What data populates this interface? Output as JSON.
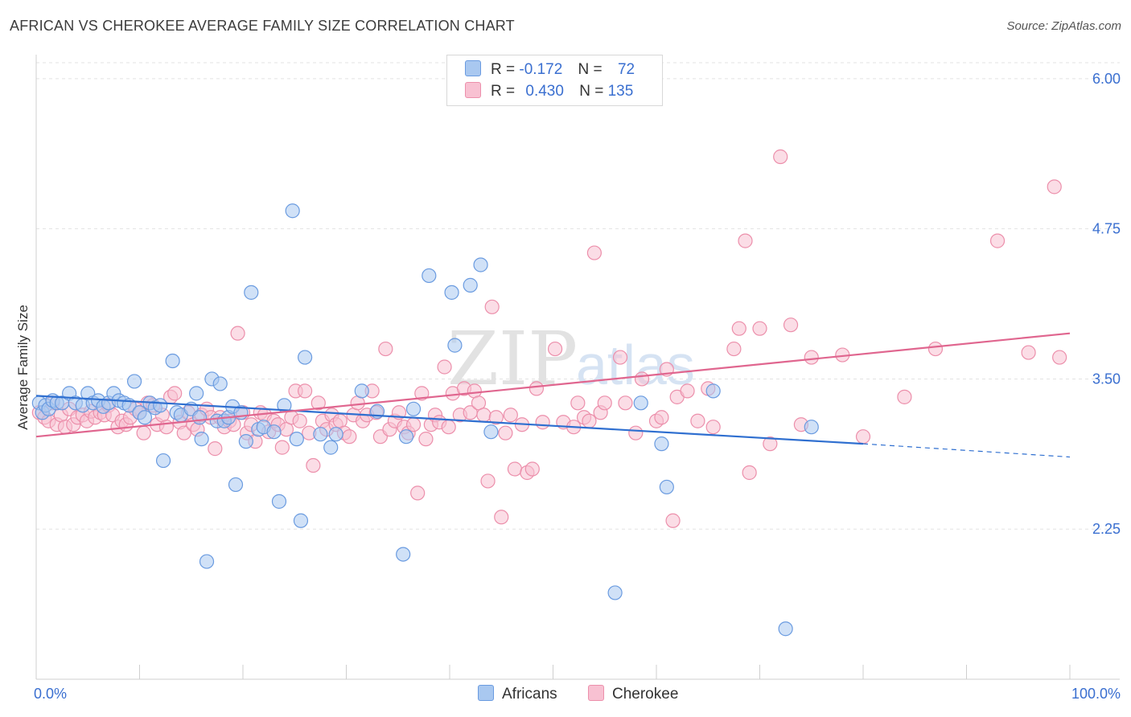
{
  "title": "AFRICAN VS CHEROKEE AVERAGE FAMILY SIZE CORRELATION CHART",
  "source": "Source: ZipAtlas.com",
  "watermark": {
    "zip": "ZIP",
    "atlas": "atlas"
  },
  "legend": {
    "r_label": "R =",
    "n_label": "N =",
    "rows": [
      {
        "r": "-0.172",
        "n": "72",
        "color": "#a9c8f0",
        "border": "#6a9be0"
      },
      {
        "r": "0.430",
        "n": "135",
        "color": "#f8c1d2",
        "border": "#ec8fab"
      }
    ]
  },
  "bottom_legend": [
    {
      "name": "Africans",
      "color": "#a9c8f0",
      "border": "#6a9be0"
    },
    {
      "name": "Cherokee",
      "color": "#f8c1d2",
      "border": "#ec8fab"
    }
  ],
  "chart_data": {
    "type": "scatter",
    "ylabel": "Average Family Size",
    "xlabel": "",
    "xlim": [
      0,
      100
    ],
    "ylim": [
      1.0,
      6.2
    ],
    "x_tick_labels": [
      "0.0%",
      "100.0%"
    ],
    "y_ticks": [
      2.25,
      3.5,
      4.75,
      6.0
    ],
    "y_tick_labels": [
      "2.25",
      "3.50",
      "4.75",
      "6.00"
    ],
    "grid": true,
    "series": [
      {
        "name": "Africans",
        "color": "#6a9be0",
        "fill": "#a9c8f0",
        "trend": {
          "x0": 0,
          "y0": 3.36,
          "x1": 80,
          "y1": 2.96,
          "dash_to": 100,
          "dash_y": 2.85
        },
        "points": [
          [
            0.3,
            3.3
          ],
          [
            0.6,
            3.22
          ],
          [
            0.9,
            3.28
          ],
          [
            1.2,
            3.25
          ],
          [
            1.6,
            3.32
          ],
          [
            2.0,
            3.3
          ],
          [
            2.5,
            3.3
          ],
          [
            3.2,
            3.38
          ],
          [
            3.8,
            3.3
          ],
          [
            4.5,
            3.28
          ],
          [
            5.0,
            3.38
          ],
          [
            5.5,
            3.3
          ],
          [
            6.0,
            3.32
          ],
          [
            6.5,
            3.27
          ],
          [
            7.0,
            3.3
          ],
          [
            7.5,
            3.38
          ],
          [
            8.0,
            3.32
          ],
          [
            8.5,
            3.3
          ],
          [
            9.0,
            3.28
          ],
          [
            9.5,
            3.48
          ],
          [
            10.0,
            3.22
          ],
          [
            10.5,
            3.18
          ],
          [
            11.0,
            3.3
          ],
          [
            11.5,
            3.26
          ],
          [
            12.0,
            3.28
          ],
          [
            12.3,
            2.82
          ],
          [
            13.2,
            3.65
          ],
          [
            13.6,
            3.22
          ],
          [
            14.0,
            3.2
          ],
          [
            15.0,
            3.25
          ],
          [
            15.5,
            3.38
          ],
          [
            15.8,
            3.18
          ],
          [
            16.0,
            3.0
          ],
          [
            16.5,
            1.98
          ],
          [
            17.0,
            3.5
          ],
          [
            17.5,
            3.15
          ],
          [
            17.8,
            3.46
          ],
          [
            18.2,
            3.15
          ],
          [
            18.6,
            3.18
          ],
          [
            19.0,
            3.27
          ],
          [
            19.3,
            2.62
          ],
          [
            19.8,
            3.22
          ],
          [
            20.3,
            2.98
          ],
          [
            20.8,
            4.22
          ],
          [
            21.5,
            3.08
          ],
          [
            22.0,
            3.1
          ],
          [
            23.0,
            3.06
          ],
          [
            23.5,
            2.48
          ],
          [
            24.0,
            3.28
          ],
          [
            24.8,
            4.9
          ],
          [
            25.2,
            3.0
          ],
          [
            25.6,
            2.32
          ],
          [
            26.0,
            3.68
          ],
          [
            27.5,
            3.04
          ],
          [
            28.5,
            2.93
          ],
          [
            29.0,
            3.04
          ],
          [
            31.5,
            3.4
          ],
          [
            33.0,
            3.23
          ],
          [
            35.5,
            2.04
          ],
          [
            35.8,
            3.02
          ],
          [
            36.5,
            3.25
          ],
          [
            38.0,
            4.36
          ],
          [
            40.2,
            4.22
          ],
          [
            40.5,
            3.78
          ],
          [
            42.0,
            4.28
          ],
          [
            43.0,
            4.45
          ],
          [
            44.0,
            3.06
          ],
          [
            56.0,
            1.72
          ],
          [
            58.5,
            3.3
          ],
          [
            60.5,
            2.96
          ],
          [
            61.0,
            2.6
          ],
          [
            65.5,
            3.4
          ],
          [
            75.0,
            3.1
          ],
          [
            72.5,
            1.42
          ]
        ]
      },
      {
        "name": "Cherokee",
        "color": "#ec8fab",
        "fill": "#f8c1d2",
        "trend": {
          "x0": 0,
          "y0": 3.02,
          "x1": 100,
          "y1": 3.88
        },
        "points": [
          [
            0.3,
            3.22
          ],
          [
            0.8,
            3.18
          ],
          [
            1.2,
            3.15
          ],
          [
            1.6,
            3.3
          ],
          [
            2.0,
            3.12
          ],
          [
            2.4,
            3.2
          ],
          [
            2.8,
            3.1
          ],
          [
            3.2,
            3.25
          ],
          [
            3.6,
            3.12
          ],
          [
            4.0,
            3.18
          ],
          [
            4.5,
            3.2
          ],
          [
            4.9,
            3.15
          ],
          [
            5.3,
            3.23
          ],
          [
            5.7,
            3.18
          ],
          [
            6.2,
            3.22
          ],
          [
            6.6,
            3.2
          ],
          [
            7.0,
            3.28
          ],
          [
            7.4,
            3.2
          ],
          [
            7.9,
            3.1
          ],
          [
            8.3,
            3.15
          ],
          [
            8.7,
            3.12
          ],
          [
            9.1,
            3.18
          ],
          [
            9.6,
            3.25
          ],
          [
            10.0,
            3.22
          ],
          [
            10.4,
            3.05
          ],
          [
            10.8,
            3.3
          ],
          [
            11.3,
            3.28
          ],
          [
            11.7,
            3.12
          ],
          [
            12.2,
            3.2
          ],
          [
            12.6,
            3.1
          ],
          [
            13.0,
            3.35
          ],
          [
            13.4,
            3.38
          ],
          [
            13.9,
            3.14
          ],
          [
            14.3,
            3.05
          ],
          [
            14.7,
            3.22
          ],
          [
            15.2,
            3.12
          ],
          [
            15.6,
            3.08
          ],
          [
            16.0,
            3.2
          ],
          [
            16.5,
            3.25
          ],
          [
            16.9,
            3.18
          ],
          [
            17.3,
            2.92
          ],
          [
            17.8,
            3.18
          ],
          [
            18.2,
            3.1
          ],
          [
            18.7,
            3.15
          ],
          [
            19.1,
            3.12
          ],
          [
            19.5,
            3.88
          ],
          [
            20.0,
            3.22
          ],
          [
            20.4,
            3.05
          ],
          [
            20.8,
            3.12
          ],
          [
            21.2,
            2.98
          ],
          [
            21.7,
            3.22
          ],
          [
            22.1,
            3.2
          ],
          [
            22.5,
            3.06
          ],
          [
            23.0,
            3.15
          ],
          [
            23.4,
            3.12
          ],
          [
            23.8,
            2.93
          ],
          [
            24.2,
            3.08
          ],
          [
            24.7,
            3.18
          ],
          [
            25.1,
            3.4
          ],
          [
            25.5,
            3.15
          ],
          [
            26.0,
            3.4
          ],
          [
            26.4,
            3.05
          ],
          [
            26.8,
            2.78
          ],
          [
            27.3,
            3.3
          ],
          [
            27.7,
            3.15
          ],
          [
            28.1,
            3.08
          ],
          [
            28.6,
            3.2
          ],
          [
            29.0,
            3.12
          ],
          [
            29.4,
            3.15
          ],
          [
            29.8,
            3.05
          ],
          [
            30.3,
            3.02
          ],
          [
            30.7,
            3.2
          ],
          [
            31.1,
            3.3
          ],
          [
            31.6,
            3.15
          ],
          [
            32.0,
            3.2
          ],
          [
            32.5,
            3.4
          ],
          [
            32.9,
            3.22
          ],
          [
            33.3,
            3.02
          ],
          [
            33.8,
            3.75
          ],
          [
            34.2,
            3.08
          ],
          [
            34.7,
            3.15
          ],
          [
            35.1,
            3.22
          ],
          [
            35.6,
            3.1
          ],
          [
            36.0,
            3.05
          ],
          [
            36.5,
            3.12
          ],
          [
            36.9,
            2.55
          ],
          [
            37.3,
            3.38
          ],
          [
            37.7,
            3.0
          ],
          [
            38.2,
            3.12
          ],
          [
            38.6,
            3.2
          ],
          [
            39.0,
            3.14
          ],
          [
            39.5,
            3.6
          ],
          [
            39.9,
            3.1
          ],
          [
            40.3,
            3.38
          ],
          [
            41.0,
            3.2
          ],
          [
            41.4,
            3.42
          ],
          [
            42.0,
            3.22
          ],
          [
            42.4,
            3.4
          ],
          [
            42.8,
            3.3
          ],
          [
            43.3,
            3.2
          ],
          [
            43.7,
            2.65
          ],
          [
            44.1,
            4.1
          ],
          [
            44.5,
            3.18
          ],
          [
            45.0,
            2.35
          ],
          [
            45.4,
            3.05
          ],
          [
            45.9,
            3.2
          ],
          [
            46.3,
            2.75
          ],
          [
            47.0,
            3.12
          ],
          [
            47.5,
            2.72
          ],
          [
            48.0,
            2.75
          ],
          [
            48.4,
            3.42
          ],
          [
            49.0,
            3.14
          ],
          [
            50.2,
            3.75
          ],
          [
            51.0,
            3.14
          ],
          [
            52.0,
            3.1
          ],
          [
            52.4,
            3.3
          ],
          [
            53.0,
            3.18
          ],
          [
            53.5,
            3.15
          ],
          [
            54.0,
            4.55
          ],
          [
            54.6,
            3.22
          ],
          [
            55.0,
            3.3
          ],
          [
            56.5,
            3.68
          ],
          [
            57.0,
            3.3
          ],
          [
            58.0,
            3.05
          ],
          [
            58.6,
            3.5
          ],
          [
            60.0,
            3.15
          ],
          [
            60.5,
            3.18
          ],
          [
            61.0,
            3.58
          ],
          [
            61.6,
            2.32
          ],
          [
            62.0,
            3.35
          ],
          [
            63.0,
            3.4
          ],
          [
            64.0,
            3.15
          ],
          [
            65.0,
            3.42
          ],
          [
            65.5,
            3.1
          ],
          [
            67.5,
            3.75
          ],
          [
            68.0,
            3.92
          ],
          [
            68.6,
            4.65
          ],
          [
            69.0,
            2.72
          ],
          [
            70.0,
            3.92
          ],
          [
            71.0,
            2.96
          ],
          [
            72.0,
            5.35
          ],
          [
            73.0,
            3.95
          ],
          [
            74.0,
            3.12
          ],
          [
            75.0,
            3.68
          ],
          [
            78.0,
            3.7
          ],
          [
            80.0,
            3.02
          ],
          [
            84.0,
            3.35
          ],
          [
            87.0,
            3.75
          ],
          [
            93.0,
            4.65
          ],
          [
            96.0,
            3.72
          ],
          [
            98.5,
            5.1
          ],
          [
            99.0,
            3.68
          ]
        ]
      }
    ]
  }
}
